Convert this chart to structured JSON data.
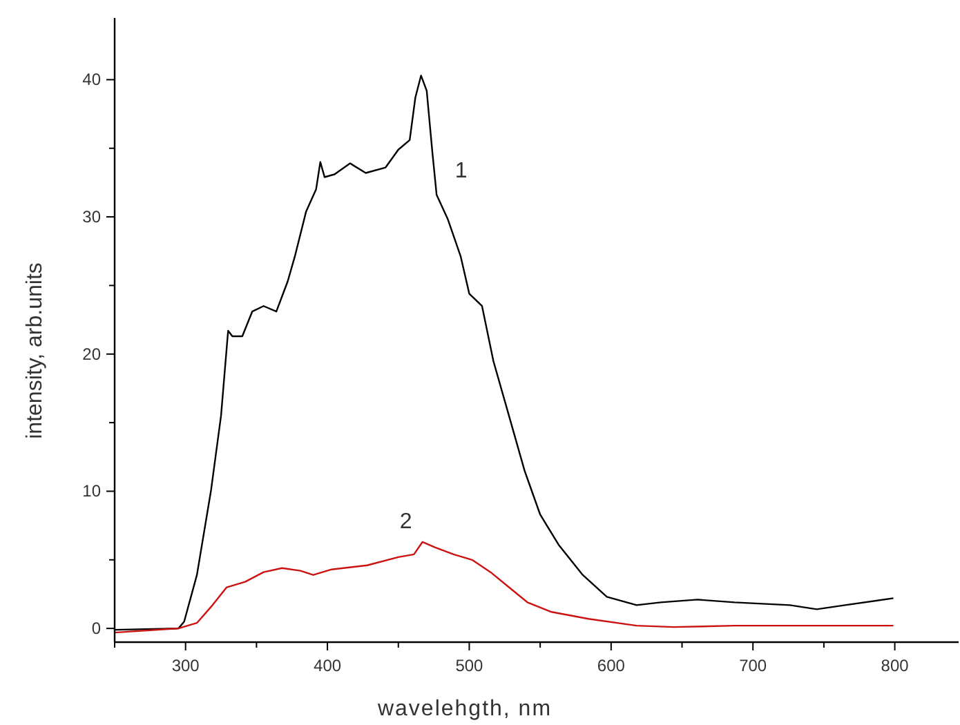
{
  "chart_data": {
    "type": "line",
    "xlabel": "wavelehgth, nm",
    "ylabel": "intensity, arb.units",
    "xlim": [
      250,
      845
    ],
    "ylim": [
      -1,
      44.5
    ],
    "xticks": [
      {
        "value": 250,
        "label": null
      },
      300,
      {
        "value": 350,
        "label": null
      },
      400,
      {
        "value": 450,
        "label": null
      },
      500,
      {
        "value": 550,
        "label": null
      },
      600,
      {
        "value": 650,
        "label": null
      },
      700,
      {
        "value": 750,
        "label": null
      },
      800
    ],
    "yticks": [
      0,
      {
        "value": 5,
        "label": null
      },
      10,
      {
        "value": 15,
        "label": null
      },
      20,
      {
        "value": 25,
        "label": null
      },
      30,
      {
        "value": 35,
        "label": null
      },
      40
    ],
    "grid": false,
    "marker": "none",
    "line_style": "solid",
    "series": [
      {
        "name": "1",
        "color": "#000000",
        "x": [
          250,
          295,
          299,
          308,
          318,
          325,
          330,
          333,
          340,
          347,
          355,
          364,
          372,
          377,
          385,
          392,
          395,
          398,
          405,
          416,
          427,
          441,
          450,
          458,
          462,
          466,
          470,
          474,
          477,
          485,
          494,
          500,
          509,
          517,
          528,
          539,
          550,
          563,
          580,
          597,
          618,
          635,
          661,
          687,
          726,
          745,
          765,
          799
        ],
        "values": [
          -0.1,
          0,
          0.5,
          3.9,
          10.1,
          15.5,
          21.7,
          21.3,
          21.3,
          23.1,
          23.5,
          23.1,
          25.3,
          27.1,
          30.4,
          32,
          34,
          32.9,
          33.1,
          33.9,
          33.2,
          33.6,
          34.9,
          35.6,
          38.7,
          40.3,
          39.2,
          34.7,
          31.6,
          29.8,
          27.1,
          24.4,
          23.5,
          19.5,
          15.5,
          11.5,
          8.3,
          6.1,
          3.9,
          2.3,
          1.7,
          1.9,
          2.1,
          1.9,
          1.7,
          1.4,
          1.7,
          2.2
        ]
      },
      {
        "name": "2",
        "color": "#cc1111",
        "x": [
          250,
          295,
          308,
          319,
          329,
          342,
          355,
          368,
          381,
          390,
          403,
          428,
          450,
          461,
          467,
          476,
          489,
          502,
          515,
          528,
          541,
          558,
          584,
          618,
          644,
          687,
          730,
          799
        ],
        "values": [
          -0.3,
          0,
          0.4,
          1.7,
          3.0,
          3.4,
          4.1,
          4.4,
          4.2,
          3.9,
          4.3,
          4.6,
          5.2,
          5.4,
          6.3,
          5.9,
          5.4,
          5.0,
          4.1,
          3.0,
          1.9,
          1.2,
          0.7,
          0.2,
          0.1,
          0.2,
          0.2,
          0.2
        ]
      }
    ]
  }
}
